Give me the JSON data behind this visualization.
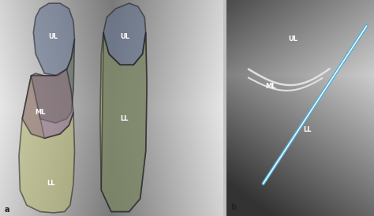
{
  "title_a": "a",
  "title_b": "b",
  "panel_a_bg": "#a8a8a8",
  "panel_b_bg": "#909090",
  "colors": {
    "UL_blue": "#607090",
    "middle_green": "#506050",
    "ML_purple": "#907080",
    "LL_yellow": "#b8b870",
    "LL_inner_green": "#607060"
  },
  "label_color": "#ffffff",
  "line_color_blue": "#50b0d8",
  "line_color_white": "#e0e0e0",
  "figsize": [
    4.74,
    2.74
  ],
  "dpi": 100,
  "left_lung": {
    "UL": {
      "x": [
        1.5,
        1.6,
        1.8,
        2.2,
        2.7,
        3.1,
        3.3,
        3.35,
        3.2,
        3.0,
        2.6,
        2.0,
        1.6,
        1.5
      ],
      "y": [
        8.5,
        9.2,
        9.6,
        9.85,
        9.85,
        9.6,
        9.0,
        8.2,
        7.3,
        6.8,
        6.5,
        6.6,
        7.5,
        8.5
      ]
    },
    "middle": {
      "x": [
        1.4,
        1.6,
        2.0,
        2.6,
        3.0,
        3.2,
        3.35,
        3.3,
        3.2,
        3.0,
        2.5,
        1.8,
        1.4
      ],
      "y": [
        6.5,
        6.6,
        6.5,
        6.5,
        6.8,
        7.3,
        8.2,
        5.8,
        4.8,
        4.5,
        4.3,
        4.5,
        6.5
      ]
    },
    "ML": {
      "x": [
        1.2,
        1.4,
        1.8,
        2.5,
        3.0,
        3.2,
        3.3,
        3.1,
        2.7,
        2.0,
        1.4,
        1.0,
        1.2
      ],
      "y": [
        5.5,
        6.5,
        6.5,
        6.5,
        6.8,
        5.8,
        4.8,
        4.2,
        3.8,
        3.6,
        3.8,
        4.5,
        5.5
      ]
    },
    "LL": {
      "x": [
        1.0,
        1.2,
        1.4,
        2.0,
        2.7,
        3.1,
        3.3,
        3.35,
        3.3,
        3.15,
        2.9,
        2.4,
        1.8,
        1.2,
        0.9,
        0.85,
        1.0
      ],
      "y": [
        4.5,
        5.5,
        6.5,
        3.6,
        3.8,
        4.2,
        4.8,
        3.0,
        1.5,
        0.5,
        0.2,
        0.15,
        0.2,
        0.5,
        1.2,
        2.8,
        4.5
      ]
    }
  },
  "right_lung": {
    "UL": {
      "x": [
        4.65,
        4.8,
        5.2,
        5.8,
        6.2,
        6.5,
        6.55,
        6.4,
        6.0,
        5.4,
        4.9,
        4.7,
        4.65
      ],
      "y": [
        8.5,
        9.2,
        9.6,
        9.85,
        9.7,
        9.2,
        8.5,
        7.5,
        7.0,
        7.0,
        7.5,
        8.2,
        8.5
      ]
    },
    "LL_outer": {
      "x": [
        4.55,
        4.65,
        4.9,
        5.4,
        6.0,
        6.4,
        6.55,
        6.6,
        6.55,
        6.3,
        5.8,
        5.0,
        4.55,
        4.5,
        4.55
      ],
      "y": [
        7.5,
        8.5,
        7.5,
        7.0,
        7.0,
        7.5,
        8.5,
        6.0,
        3.0,
        0.8,
        0.2,
        0.2,
        1.2,
        4.5,
        7.5
      ]
    },
    "LL_inner": {
      "x": [
        4.65,
        4.9,
        5.4,
        6.0,
        6.4,
        6.55,
        6.6,
        6.55,
        6.3,
        5.8,
        5.0,
        4.55,
        4.65
      ],
      "y": [
        8.5,
        7.5,
        7.0,
        7.0,
        7.5,
        8.5,
        6.0,
        3.0,
        0.8,
        0.2,
        0.2,
        1.2,
        8.5
      ]
    }
  }
}
